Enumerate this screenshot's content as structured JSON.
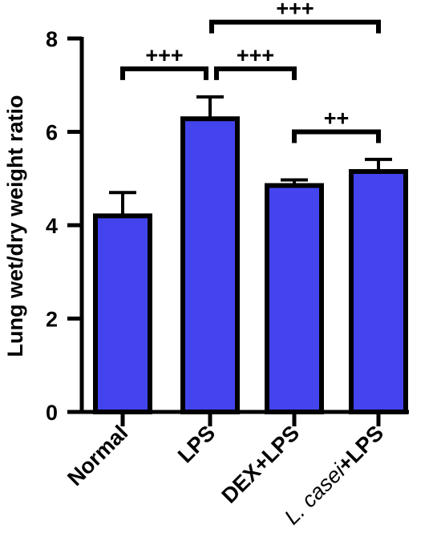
{
  "chart_data": {
    "type": "bar",
    "title": "",
    "xlabel": "",
    "ylabel": "Lung wet/dry weight ratio",
    "ylim": [
      0,
      8
    ],
    "yticks": [
      "0",
      "2",
      "4",
      "6",
      "8"
    ],
    "categories": [
      {
        "label": "Normal",
        "label_italic_prefix": ""
      },
      {
        "label": "LPS",
        "label_italic_prefix": ""
      },
      {
        "label": "DEX+LPS",
        "label_italic_prefix": ""
      },
      {
        "label": "+LPS",
        "label_italic_prefix": "L. casei"
      }
    ],
    "values": [
      4.2,
      6.28,
      4.85,
      5.15
    ],
    "errors": [
      0.5,
      0.47,
      0.12,
      0.26
    ],
    "bar_color": "#4444ee",
    "bar_edge_color": "#000000",
    "grid": false,
    "significance": [
      {
        "from": 0,
        "to": 1,
        "label": "+++",
        "y": 7.35
      },
      {
        "from": 1,
        "to": 2,
        "label": "+++",
        "y": 7.35
      },
      {
        "from": 1,
        "to": 3,
        "label": "+++",
        "y": 8.35
      },
      {
        "from": 2,
        "to": 3,
        "label": "++",
        "y": 6.0
      }
    ]
  }
}
